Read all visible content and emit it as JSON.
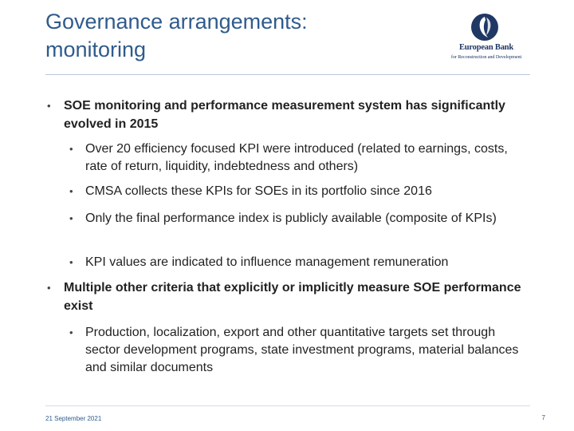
{
  "slide": {
    "title_line1": "Governance arrangements:",
    "title_line2": "monitoring"
  },
  "logo": {
    "name": "European Bank",
    "tagline": "for Reconstruction and Development",
    "icon": "ebrd-logo-icon",
    "color": "#1f3864"
  },
  "bullets": [
    {
      "text": "SOE monitoring and performance measurement system has significantly evolved in 2015",
      "subitems": [
        "Over 20 efficiency focused KPI were introduced (related to earnings, costs, rate of return, liquidity, indebtedness and others)",
        "CMSA collects these KPIs for SOEs in its portfolio since 2016",
        "Only the final performance index is publicly available (composite of KPIs)",
        "KPI values are indicated to influence management remuneration"
      ]
    },
    {
      "text": "Multiple other criteria that explicitly or implicitly measure SOE performance exist",
      "subitems": [
        "Production, localization, export and other quantitative targets set through  sector development programs, state investment programs, material balances and similar documents"
      ]
    }
  ],
  "bullet_glyph": "•",
  "footer": {
    "date": "21 September 2021",
    "page": "7"
  },
  "colors": {
    "title": "#2f5b8c",
    "text": "#222222"
  }
}
